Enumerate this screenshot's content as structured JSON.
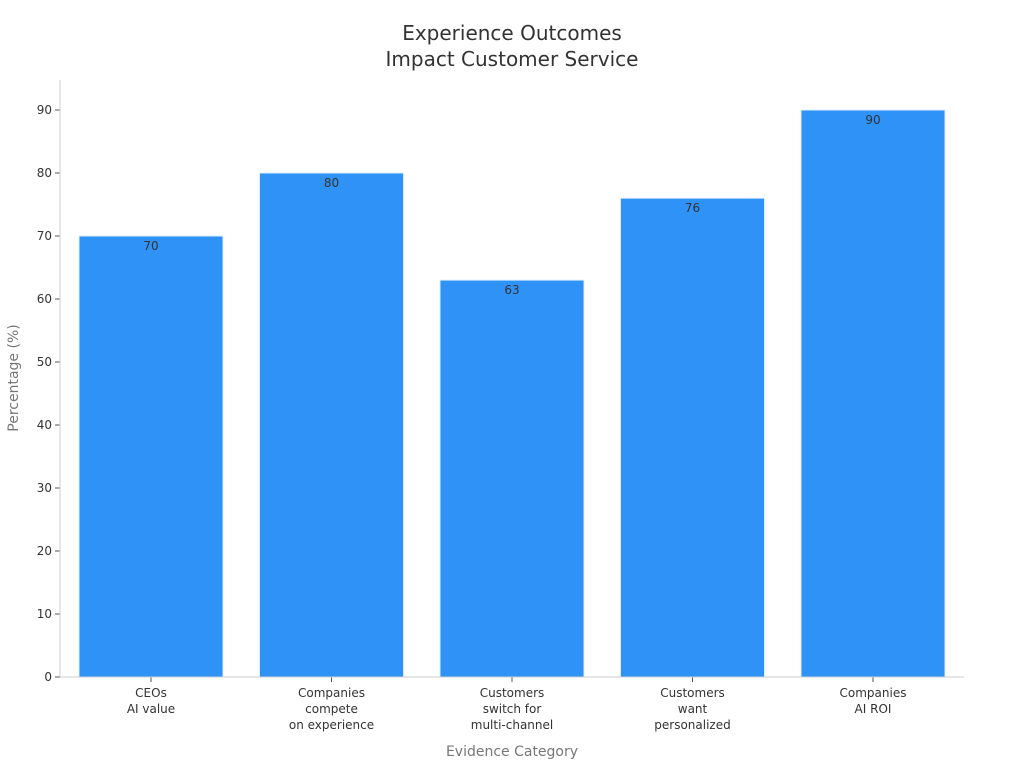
{
  "chart_data": {
    "type": "bar",
    "title_lines": [
      "Experience Outcomes",
      "Impact Customer Service"
    ],
    "xlabel": "Evidence Category",
    "ylabel": "Percentage (%)",
    "categories": [
      [
        "CEOs",
        "AI value"
      ],
      [
        "Companies",
        "compete",
        "on experience"
      ],
      [
        "Customers",
        "switch for",
        "multi-channel"
      ],
      [
        "Customers",
        "want",
        "personalized"
      ],
      [
        "Companies",
        "AI ROI"
      ]
    ],
    "values": [
      70,
      80,
      63,
      76,
      90
    ],
    "ylim": [
      0,
      90
    ],
    "yticks": [
      0,
      10,
      20,
      30,
      40,
      50,
      60,
      70,
      80,
      90
    ],
    "bar_color": "#2f92f7",
    "bar_edge_color": "#ddeeff",
    "grid": false
  }
}
